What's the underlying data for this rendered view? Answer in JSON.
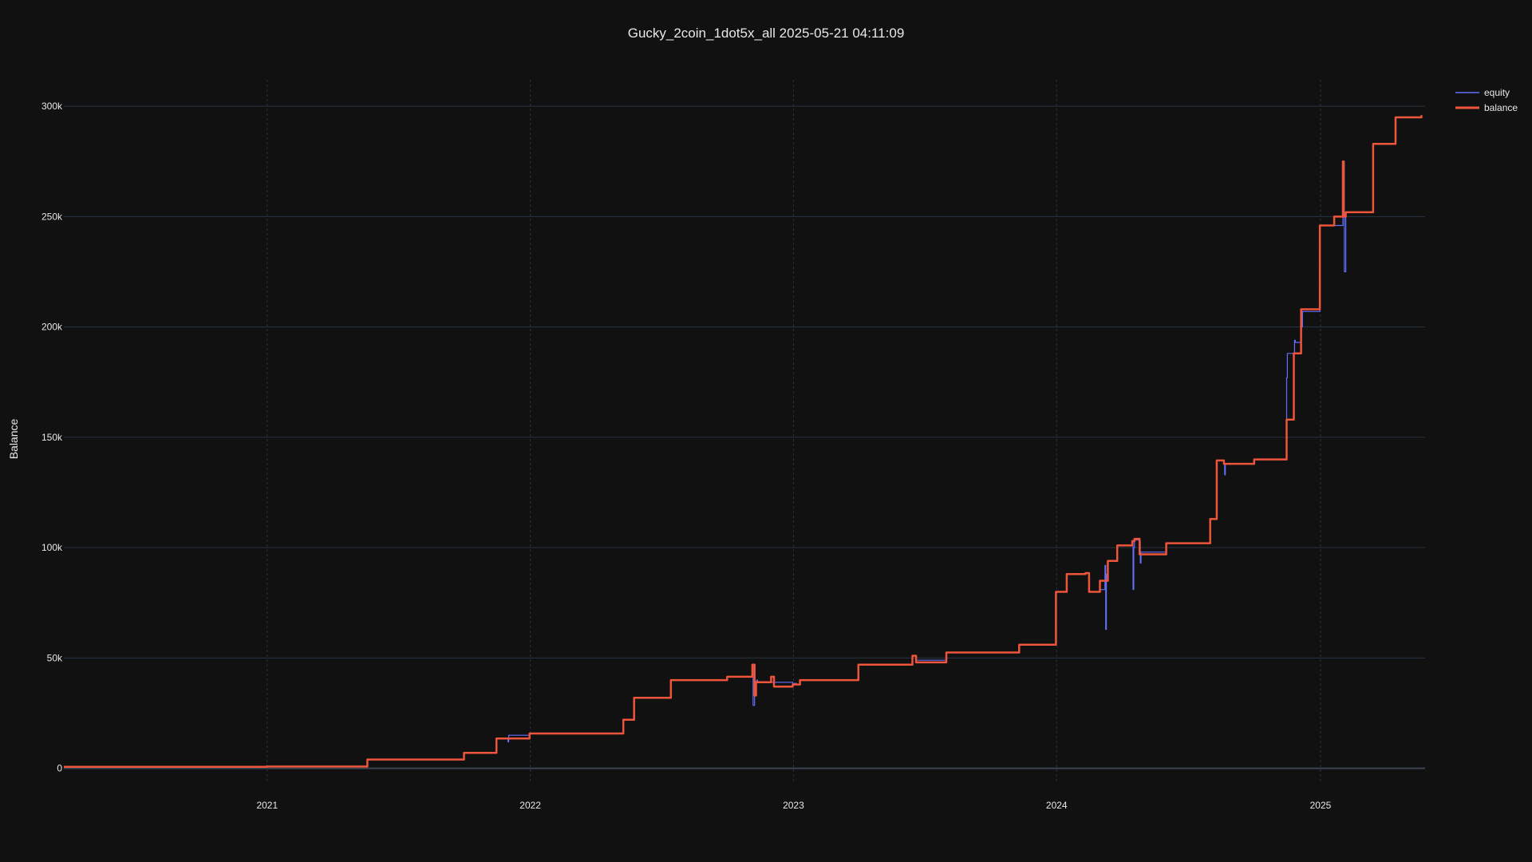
{
  "chart_data": {
    "type": "line",
    "title": "Gucky_2coin_1dot5x_all 2025-05-21 04:11:09",
    "xlabel": "",
    "ylabel": "Balance",
    "x_tick_labels": [
      "2021",
      "2022",
      "2023",
      "2024",
      "2025"
    ],
    "y_tick_labels": [
      "0",
      "50k",
      "100k",
      "150k",
      "200k",
      "250k",
      "300k"
    ],
    "y_ticks": [
      0,
      50000,
      100000,
      150000,
      200000,
      250000,
      300000
    ],
    "xlim": [
      "2020-03-25",
      "2025-05-26"
    ],
    "ylim": [
      -7000,
      312000
    ],
    "grid": true,
    "legend_position": "top-right",
    "background": "#111111",
    "series": [
      {
        "name": "equity",
        "color": "#636efa",
        "x": [
          "2020-03-25",
          "2020-12-31",
          "2021-05-20",
          "2021-10-01",
          "2021-11-15",
          "2021-12-01",
          "2021-12-02",
          "2021-12-31",
          "2022-05-10",
          "2022-05-25",
          "2022-07-15",
          "2022-10-01",
          "2022-11-05",
          "2022-11-06",
          "2022-11-08",
          "2022-11-10",
          "2022-11-11",
          "2022-11-12",
          "2022-12-31",
          "2023-01-05",
          "2023-01-10",
          "2023-04-01",
          "2023-06-15",
          "2023-06-20",
          "2023-08-01",
          "2023-11-10",
          "2023-12-31",
          "2024-01-15",
          "2024-02-10",
          "2024-02-15",
          "2024-03-01",
          "2024-03-08",
          "2024-03-09",
          "2024-03-10",
          "2024-03-12",
          "2024-03-25",
          "2024-04-15",
          "2024-04-16",
          "2024-04-17",
          "2024-04-18",
          "2024-04-25",
          "2024-04-26",
          "2024-04-27",
          "2024-06-01",
          "2024-08-01",
          "2024-08-10",
          "2024-08-11",
          "2024-08-20",
          "2024-08-21",
          "2024-08-22",
          "2024-10-01",
          "2024-11-15",
          "2024-11-16",
          "2024-11-25",
          "2024-11-26",
          "2024-11-27",
          "2024-12-05",
          "2024-12-06",
          "2024-12-07",
          "2024-12-31",
          "2025-02-01",
          "2025-02-02",
          "2025-02-03",
          "2025-02-05",
          "2025-03-15",
          "2025-04-15",
          "2025-05-21"
        ],
        "values": [
          700,
          800,
          4000,
          7000,
          13500,
          12000,
          15000,
          15800,
          22000,
          32000,
          40000,
          41500,
          47000,
          28500,
          38000,
          38500,
          40000,
          39000,
          38500,
          38000,
          40000,
          47000,
          51000,
          49000,
          52500,
          56000,
          80000,
          88000,
          88500,
          80000,
          81000,
          92000,
          63000,
          88000,
          94000,
          101000,
          103000,
          81000,
          100000,
          103500,
          103000,
          93000,
          98000,
          102000,
          113000,
          139500,
          139500,
          138000,
          133000,
          138000,
          140000,
          177000,
          188000,
          188000,
          194000,
          193000,
          208000,
          200000,
          207000,
          246000,
          270000,
          275000,
          225000,
          252000,
          283000,
          295000,
          295000
        ]
      },
      {
        "name": "balance",
        "color": "#ef553b",
        "x": [
          "2020-03-25",
          "2020-12-31",
          "2021-05-20",
          "2021-10-01",
          "2021-11-15",
          "2021-12-31",
          "2022-05-10",
          "2022-05-25",
          "2022-07-15",
          "2022-10-01",
          "2022-11-05",
          "2022-11-08",
          "2022-11-10",
          "2022-12-01",
          "2022-12-05",
          "2022-12-31",
          "2023-01-10",
          "2023-04-01",
          "2023-06-15",
          "2023-06-20",
          "2023-08-01",
          "2023-11-10",
          "2023-12-31",
          "2024-01-15",
          "2024-02-10",
          "2024-02-15",
          "2024-03-01",
          "2024-03-12",
          "2024-03-25",
          "2024-04-15",
          "2024-04-18",
          "2024-04-25",
          "2024-06-01",
          "2024-08-01",
          "2024-08-10",
          "2024-08-20",
          "2024-10-01",
          "2024-11-15",
          "2024-11-25",
          "2024-12-05",
          "2024-12-31",
          "2025-01-20",
          "2025-02-01",
          "2025-02-02",
          "2025-02-05",
          "2025-03-15",
          "2025-04-15",
          "2025-05-21"
        ],
        "values": [
          700,
          800,
          4000,
          7000,
          13500,
          15800,
          22000,
          32000,
          40000,
          41500,
          47000,
          33000,
          39000,
          41500,
          37000,
          38000,
          40000,
          47000,
          51000,
          48000,
          52500,
          56000,
          80000,
          88000,
          88500,
          80000,
          85000,
          94000,
          101000,
          103000,
          104000,
          97000,
          102000,
          113000,
          139500,
          138000,
          140000,
          158000,
          188000,
          208000,
          246000,
          250000,
          275000,
          250000,
          252000,
          283000,
          295000,
          296000
        ]
      }
    ]
  }
}
